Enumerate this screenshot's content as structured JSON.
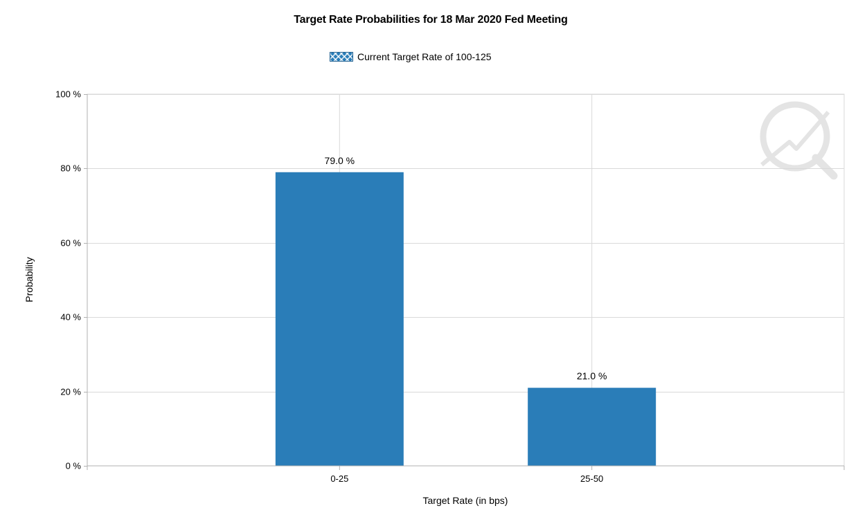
{
  "chart_data": {
    "type": "bar",
    "title": "Target Rate Probabilities for 18 Mar 2020 Fed Meeting",
    "categories": [
      "0-25",
      "25-50"
    ],
    "series": [
      {
        "name": "Current Target Rate of 100-125",
        "values": [
          79.0,
          21.0
        ],
        "data_labels": [
          "79.0 %",
          "21.0 %"
        ],
        "color": "#2a7db8"
      }
    ],
    "xlabel": "Target Rate (in bps)",
    "ylabel": "Probability",
    "ylim": [
      0,
      100
    ],
    "yticks": [
      0,
      20,
      40,
      60,
      80,
      100
    ],
    "ytick_labels": [
      "0 %",
      "20 %",
      "40 %",
      "60 %",
      "80 %",
      "100 %"
    ],
    "grid": true,
    "legend_position": "top-center"
  },
  "colors": {
    "bar": "#2a7db8",
    "grid": "#d9d9d9",
    "axis": "#b0b0b0",
    "watermark": "#e6e6e6"
  },
  "watermark_icon": "quikstrike-logo-icon"
}
